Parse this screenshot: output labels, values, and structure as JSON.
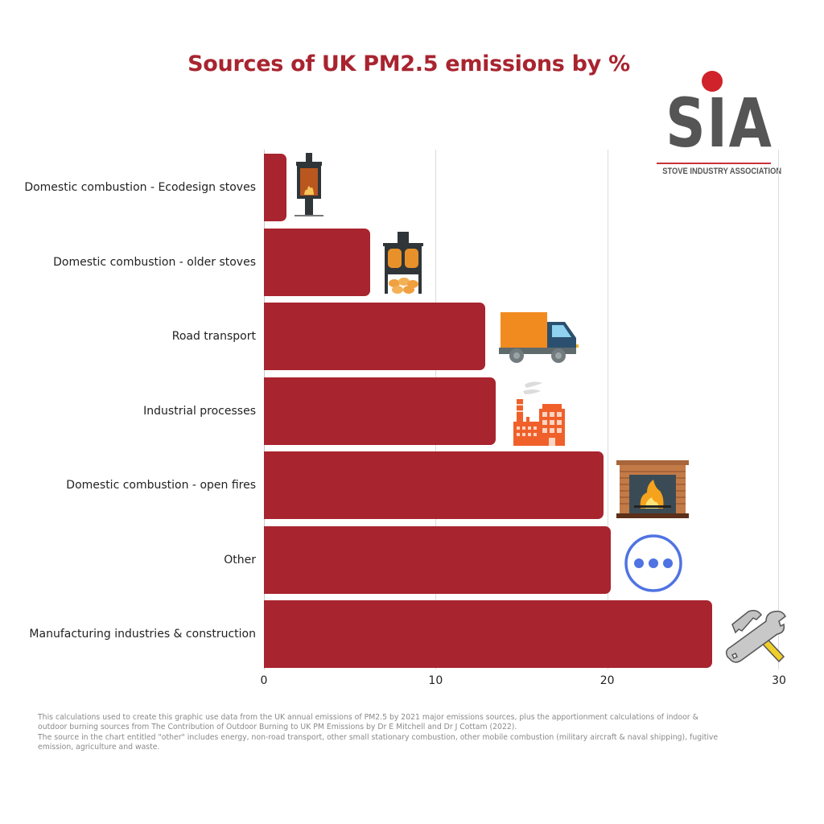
{
  "title": "Sources of UK PM2.5 emissions by %",
  "logo": {
    "letters": "SIA",
    "subtitle": "STOVE INDUSTRY ASSOCIATION",
    "dot_color": "#d0222a",
    "text_color": "#555555"
  },
  "colors": {
    "bar": "#a8242f",
    "title": "#a8242f"
  },
  "axis": {
    "ticks": [
      "0",
      "10",
      "20",
      "30"
    ]
  },
  "chart_data": {
    "type": "bar",
    "orientation": "horizontal",
    "title": "Sources of UK PM2.5 emissions by %",
    "xlabel": "",
    "ylabel": "",
    "xlim": [
      0,
      30
    ],
    "x_ticks": [
      0,
      10,
      20,
      30
    ],
    "grid": true,
    "legend": null,
    "categories": [
      "Domestic combustion - Ecodesign stoves",
      "Domestic combustion - older stoves",
      "Road transport",
      "Industrial processes",
      "Domestic combustion - open fires",
      "Other",
      "Manufacturing industries & construction"
    ],
    "values": [
      1.3,
      6.2,
      12.9,
      13.5,
      19.8,
      20.2,
      26.1
    ],
    "icons": [
      "ecodesign-stove-icon",
      "older-stove-icon",
      "truck-icon",
      "factory-icon",
      "fireplace-icon",
      "more-dots-icon",
      "hammer-wrench-icon"
    ]
  },
  "footnote": {
    "line1": "This calculations used to create this graphic use data from the UK annual emissions of PM2.5 by 2021 major emissions sources, plus the apportionment calculations of indoor & outdoor burning sources from The Contribution of Outdoor Burning to UK PM Emissions by Dr E Mitchell and Dr J Cottam (2022).",
    "line2": "The source in the chart entitled \"other\" includes energy, non-road transport, other small stationary combustion, other mobile combustion (military aircraft & naval shipping), fugitive emission, agriculture and waste."
  }
}
